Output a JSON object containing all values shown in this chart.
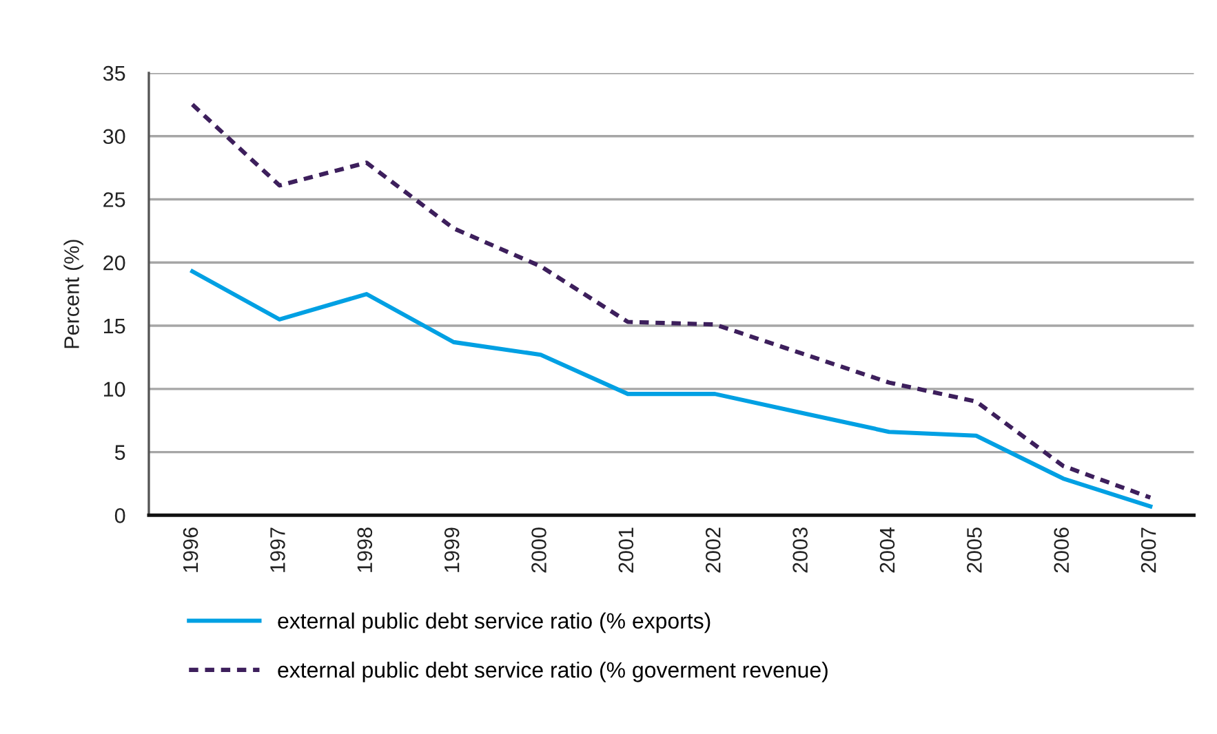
{
  "chart_data": {
    "type": "line",
    "ylabel": "Percent (%)",
    "categories": [
      "1996",
      "1997",
      "1998",
      "1999",
      "2000",
      "2001",
      "2002",
      "2003",
      "2004",
      "2005",
      "2006",
      "2007"
    ],
    "series": [
      {
        "name": "external public debt service ratio (% exports)",
        "color": "#00a0e3",
        "line_style": "solid",
        "values": [
          19.3,
          15.5,
          17.5,
          13.7,
          12.7,
          9.6,
          9.6,
          8.1,
          6.6,
          6.3,
          2.9,
          0.7
        ]
      },
      {
        "name": "external public debt service ratio (% goverment revenue)",
        "color": "#3d1f5c",
        "line_style": "dashed",
        "values": [
          32.5,
          26.1,
          27.9,
          22.7,
          19.7,
          15.3,
          15.1,
          12.8,
          10.5,
          9.0,
          3.9,
          1.4
        ]
      }
    ],
    "ylim": [
      0,
      35
    ],
    "yticks": [
      0,
      5,
      10,
      15,
      20,
      25,
      30,
      35
    ],
    "grid": "y",
    "legend": "bottom",
    "marker": "none"
  }
}
